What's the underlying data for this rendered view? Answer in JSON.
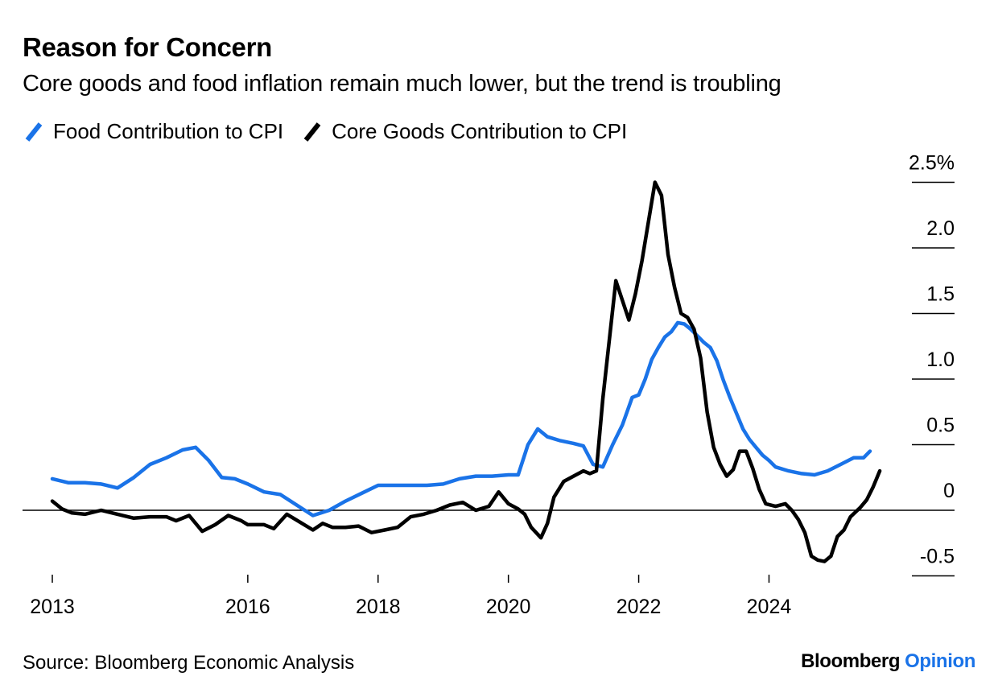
{
  "header": {
    "title": "Reason for Concern",
    "subtitle": "Core goods and food inflation remain much lower, but the trend is troubling"
  },
  "footer": {
    "source": "Source: Bloomberg Economic Analysis",
    "brand_main": "Bloomberg",
    "brand_accent": "Opinion"
  },
  "colors": {
    "food": "#1a73e8",
    "core_goods": "#000000",
    "brand_accent": "#1a73e8"
  },
  "chart_data": {
    "type": "line",
    "title": "Reason for Concern",
    "subtitle": "Core goods and food inflation remain much lower, but the trend is troubling",
    "legend_position": "top-left",
    "x_ticks": [
      {
        "value": 2013,
        "label": "2013"
      },
      {
        "value": 2016,
        "label": "2016"
      },
      {
        "value": 2018,
        "label": "2018"
      },
      {
        "value": 2020,
        "label": "2020"
      },
      {
        "value": 2022,
        "label": "2022"
      },
      {
        "value": 2024,
        "label": "2024"
      }
    ],
    "y_ticks": [
      {
        "value": 2.5,
        "label": "2.5%"
      },
      {
        "value": 2.0,
        "label": "2.0"
      },
      {
        "value": 1.5,
        "label": "1.5"
      },
      {
        "value": 1.0,
        "label": "1.0"
      },
      {
        "value": 0.5,
        "label": "0.5"
      },
      {
        "value": 0,
        "label": "0"
      },
      {
        "value": -0.5,
        "label": "-0.5"
      }
    ],
    "xlim": [
      2013,
      2025.6
    ],
    "ylim": [
      -0.5,
      2.5
    ],
    "y_axis_side": "right",
    "zero_line": true,
    "series": [
      {
        "name": "Food Contribution to CPI",
        "color": "#1a73e8",
        "points": [
          [
            2013.0,
            0.24
          ],
          [
            2013.25,
            0.21
          ],
          [
            2013.5,
            0.21
          ],
          [
            2013.75,
            0.2
          ],
          [
            2014.0,
            0.17
          ],
          [
            2014.25,
            0.25
          ],
          [
            2014.5,
            0.35
          ],
          [
            2014.75,
            0.4
          ],
          [
            2015.0,
            0.46
          ],
          [
            2015.2,
            0.48
          ],
          [
            2015.4,
            0.38
          ],
          [
            2015.6,
            0.25
          ],
          [
            2015.8,
            0.24
          ],
          [
            2016.0,
            0.2
          ],
          [
            2016.25,
            0.14
          ],
          [
            2016.5,
            0.12
          ],
          [
            2016.75,
            0.04
          ],
          [
            2017.0,
            -0.04
          ],
          [
            2017.25,
            0.0
          ],
          [
            2017.5,
            0.07
          ],
          [
            2017.75,
            0.13
          ],
          [
            2018.0,
            0.19
          ],
          [
            2018.25,
            0.19
          ],
          [
            2018.5,
            0.19
          ],
          [
            2018.75,
            0.19
          ],
          [
            2019.0,
            0.2
          ],
          [
            2019.25,
            0.24
          ],
          [
            2019.5,
            0.26
          ],
          [
            2019.75,
            0.26
          ],
          [
            2020.0,
            0.27
          ],
          [
            2020.15,
            0.27
          ],
          [
            2020.3,
            0.5
          ],
          [
            2020.45,
            0.62
          ],
          [
            2020.6,
            0.56
          ],
          [
            2020.8,
            0.53
          ],
          [
            2021.0,
            0.51
          ],
          [
            2021.15,
            0.49
          ],
          [
            2021.3,
            0.35
          ],
          [
            2021.45,
            0.33
          ],
          [
            2021.6,
            0.5
          ],
          [
            2021.75,
            0.65
          ],
          [
            2021.9,
            0.86
          ],
          [
            2022.0,
            0.88
          ],
          [
            2022.1,
            1.0
          ],
          [
            2022.2,
            1.15
          ],
          [
            2022.3,
            1.24
          ],
          [
            2022.4,
            1.32
          ],
          [
            2022.5,
            1.36
          ],
          [
            2022.6,
            1.43
          ],
          [
            2022.7,
            1.42
          ],
          [
            2022.8,
            1.38
          ],
          [
            2022.9,
            1.33
          ],
          [
            2023.0,
            1.28
          ],
          [
            2023.1,
            1.24
          ],
          [
            2023.2,
            1.14
          ],
          [
            2023.3,
            0.99
          ],
          [
            2023.4,
            0.86
          ],
          [
            2023.5,
            0.74
          ],
          [
            2023.6,
            0.62
          ],
          [
            2023.7,
            0.54
          ],
          [
            2023.8,
            0.48
          ],
          [
            2023.9,
            0.42
          ],
          [
            2024.0,
            0.38
          ],
          [
            2024.1,
            0.33
          ],
          [
            2024.3,
            0.3
          ],
          [
            2024.5,
            0.28
          ],
          [
            2024.7,
            0.27
          ],
          [
            2024.9,
            0.3
          ],
          [
            2025.1,
            0.35
          ],
          [
            2025.3,
            0.4
          ],
          [
            2025.45,
            0.4
          ],
          [
            2025.55,
            0.45
          ]
        ]
      },
      {
        "name": "Core Goods Contribution to CPI",
        "color": "#000000",
        "points": [
          [
            2013.0,
            0.07
          ],
          [
            2013.15,
            0.01
          ],
          [
            2013.3,
            -0.02
          ],
          [
            2013.5,
            -0.03
          ],
          [
            2013.75,
            0.0
          ],
          [
            2014.0,
            -0.03
          ],
          [
            2014.25,
            -0.06
          ],
          [
            2014.5,
            -0.05
          ],
          [
            2014.75,
            -0.05
          ],
          [
            2014.9,
            -0.08
          ],
          [
            2015.1,
            -0.04
          ],
          [
            2015.3,
            -0.16
          ],
          [
            2015.5,
            -0.11
          ],
          [
            2015.7,
            -0.04
          ],
          [
            2015.9,
            -0.08
          ],
          [
            2016.0,
            -0.11
          ],
          [
            2016.25,
            -0.11
          ],
          [
            2016.4,
            -0.14
          ],
          [
            2016.6,
            -0.03
          ],
          [
            2016.8,
            -0.09
          ],
          [
            2017.0,
            -0.15
          ],
          [
            2017.15,
            -0.1
          ],
          [
            2017.3,
            -0.13
          ],
          [
            2017.5,
            -0.13
          ],
          [
            2017.7,
            -0.12
          ],
          [
            2017.9,
            -0.17
          ],
          [
            2018.1,
            -0.15
          ],
          [
            2018.3,
            -0.13
          ],
          [
            2018.5,
            -0.05
          ],
          [
            2018.7,
            -0.03
          ],
          [
            2018.9,
            0.0
          ],
          [
            2019.1,
            0.04
          ],
          [
            2019.3,
            0.06
          ],
          [
            2019.5,
            0.0
          ],
          [
            2019.7,
            0.03
          ],
          [
            2019.85,
            0.14
          ],
          [
            2020.0,
            0.05
          ],
          [
            2020.15,
            0.01
          ],
          [
            2020.25,
            -0.03
          ],
          [
            2020.35,
            -0.13
          ],
          [
            2020.5,
            -0.21
          ],
          [
            2020.6,
            -0.1
          ],
          [
            2020.7,
            0.1
          ],
          [
            2020.85,
            0.22
          ],
          [
            2021.0,
            0.26
          ],
          [
            2021.15,
            0.3
          ],
          [
            2021.25,
            0.28
          ],
          [
            2021.35,
            0.3
          ],
          [
            2021.45,
            0.85
          ],
          [
            2021.55,
            1.3
          ],
          [
            2021.65,
            1.75
          ],
          [
            2021.75,
            1.6
          ],
          [
            2021.85,
            1.45
          ],
          [
            2021.95,
            1.65
          ],
          [
            2022.05,
            1.9
          ],
          [
            2022.15,
            2.2
          ],
          [
            2022.25,
            2.5
          ],
          [
            2022.35,
            2.4
          ],
          [
            2022.45,
            1.95
          ],
          [
            2022.55,
            1.7
          ],
          [
            2022.65,
            1.5
          ],
          [
            2022.75,
            1.47
          ],
          [
            2022.85,
            1.38
          ],
          [
            2022.95,
            1.16
          ],
          [
            2023.05,
            0.75
          ],
          [
            2023.15,
            0.48
          ],
          [
            2023.25,
            0.35
          ],
          [
            2023.35,
            0.26
          ],
          [
            2023.45,
            0.31
          ],
          [
            2023.55,
            0.45
          ],
          [
            2023.65,
            0.45
          ],
          [
            2023.75,
            0.32
          ],
          [
            2023.85,
            0.16
          ],
          [
            2023.95,
            0.05
          ],
          [
            2024.1,
            0.03
          ],
          [
            2024.25,
            0.05
          ],
          [
            2024.35,
            0.0
          ],
          [
            2024.45,
            -0.07
          ],
          [
            2024.55,
            -0.17
          ],
          [
            2024.65,
            -0.35
          ],
          [
            2024.75,
            -0.38
          ],
          [
            2024.85,
            -0.39
          ],
          [
            2024.95,
            -0.35
          ],
          [
            2025.05,
            -0.2
          ],
          [
            2025.15,
            -0.15
          ],
          [
            2025.25,
            -0.05
          ],
          [
            2025.4,
            0.02
          ],
          [
            2025.5,
            0.08
          ],
          [
            2025.6,
            0.18
          ],
          [
            2025.7,
            0.3
          ]
        ]
      }
    ]
  }
}
